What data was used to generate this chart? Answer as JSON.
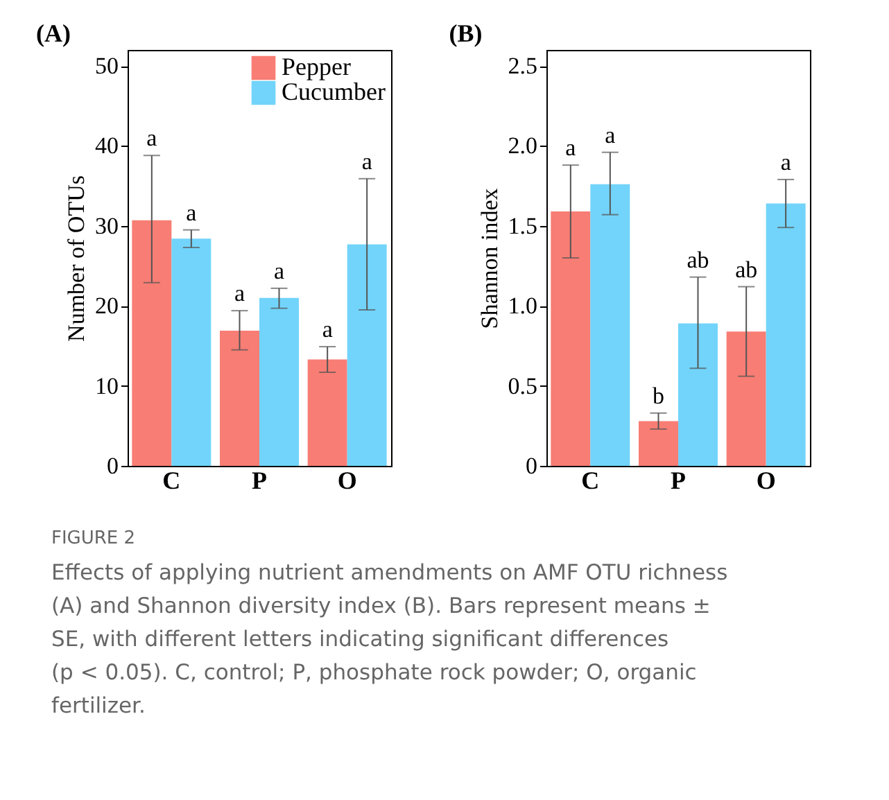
{
  "chart_data": [
    {
      "type": "bar",
      "title": "(A)",
      "ylabel": "Number of OTUs",
      "categories": [
        "C",
        "P",
        "O"
      ],
      "series": [
        {
          "name": "Pepper",
          "color": "#f87d74",
          "values": [
            30.7,
            16.9,
            13.3
          ],
          "errors": [
            [
              22.9,
              38.8
            ],
            [
              14.5,
              19.4
            ],
            [
              11.7,
              14.9
            ]
          ]
        },
        {
          "name": "Cucumber",
          "color": "#72d4fa",
          "values": [
            28.4,
            21.0,
            27.7
          ],
          "errors": [
            [
              27.3,
              29.5
            ],
            [
              19.7,
              22.2
            ],
            [
              19.5,
              35.9
            ]
          ]
        }
      ],
      "ylim": [
        0,
        52
      ],
      "yticks": [
        0,
        10,
        20,
        30,
        40,
        50
      ],
      "grid": false,
      "legend": "top right",
      "annotations": [
        "a",
        "a",
        "a",
        "a",
        "a",
        "a"
      ]
    },
    {
      "type": "bar",
      "title": "(B)",
      "ylabel": "Shannon index",
      "categories": [
        "C",
        "P",
        "O"
      ],
      "series": [
        {
          "color": "#f87d74",
          "values": [
            1.59,
            0.28,
            0.84
          ],
          "errors": [
            [
              1.3,
              1.88
            ],
            [
              0.23,
              0.33
            ],
            [
              0.56,
              1.12
            ]
          ]
        },
        {
          "color": "#72d4fa",
          "values": [
            1.76,
            0.89,
            1.64
          ],
          "errors": [
            [
              1.57,
              1.96
            ],
            [
              0.61,
              1.18
            ],
            [
              1.49,
              1.79
            ]
          ]
        }
      ],
      "ylim": [
        0,
        2.6
      ],
      "yticks": [
        {
          "value": 0,
          "label": "0"
        },
        0.5,
        {
          "value": 1,
          "label": "1.0"
        },
        1.5,
        {
          "value": 2,
          "label": "2.0"
        },
        2.5
      ],
      "grid": false,
      "annotations": [
        "a",
        "b",
        "ab",
        "a",
        "ab",
        "a",
        "FIGURE 2",
        "Effects of applying nutrient amendments on AMF OTU richness (A) and Shannon diversity index (B). Bars represent means ± SE, with different letters indicating significant differences (p < 0.05). C, control; P, phosphate rock powder; O, organic fertilizer."
      ]
    }
  ]
}
